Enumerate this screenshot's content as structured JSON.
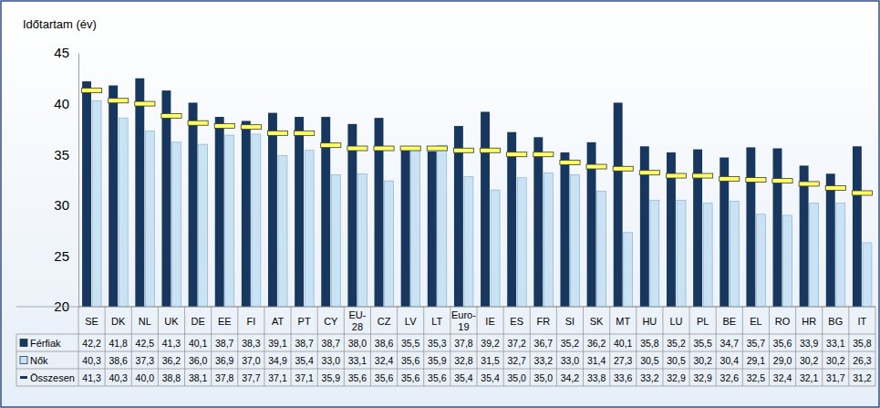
{
  "chart_data": {
    "type": "bar",
    "ylabel": "Időtartam (év)",
    "categories": [
      "SE",
      "DK",
      "NL",
      "UK",
      "DE",
      "EE",
      "FI",
      "AT",
      "PT",
      "CY",
      "EU-28",
      "CZ",
      "LV",
      "LT",
      "Euro-19",
      "IE",
      "ES",
      "FR",
      "SI",
      "SK",
      "MT",
      "HU",
      "LU",
      "PL",
      "BE",
      "EL",
      "RO",
      "HR",
      "BG",
      "IT"
    ],
    "series": [
      {
        "name": "Férfiak",
        "type": "bar",
        "color": "#17375e",
        "values": [
          42.2,
          41.8,
          42.5,
          41.3,
          40.1,
          38.7,
          38.3,
          39.1,
          38.7,
          38.7,
          38.0,
          38.6,
          35.5,
          35.3,
          37.8,
          39.2,
          37.2,
          36.7,
          35.2,
          36.2,
          40.1,
          35.8,
          35.2,
          35.5,
          34.7,
          35.7,
          35.6,
          33.9,
          33.1,
          35.8
        ],
        "value_labels": [
          "42,2",
          "41,8",
          "42,5",
          "41,3",
          "40,1",
          "38,7",
          "38,3",
          "39,1",
          "38,7",
          "38,7",
          "38,0",
          "38,6",
          "35,5",
          "35,3",
          "37,8",
          "39,2",
          "37,2",
          "36,7",
          "35,2",
          "36,2",
          "40,1",
          "35,8",
          "35,2",
          "35,5",
          "34,7",
          "35,7",
          "35,6",
          "33,9",
          "33,1",
          "35,8"
        ]
      },
      {
        "name": "Nők",
        "type": "bar",
        "color": "#c9e3f4",
        "values": [
          40.3,
          38.6,
          37.3,
          36.2,
          36.0,
          36.9,
          37.0,
          34.9,
          35.4,
          33.0,
          33.1,
          32.4,
          35.6,
          35.9,
          32.8,
          31.5,
          32.7,
          33.2,
          33.0,
          31.4,
          27.3,
          30.5,
          30.5,
          30.2,
          30.4,
          29.1,
          29.0,
          30.2,
          30.2,
          26.3
        ],
        "value_labels": [
          "40,3",
          "38,6",
          "37,3",
          "36,2",
          "36,0",
          "36,9",
          "37,0",
          "34,9",
          "35,4",
          "33,0",
          "33,1",
          "32,4",
          "35,6",
          "35,9",
          "32,8",
          "31,5",
          "32,7",
          "33,2",
          "33,0",
          "31,4",
          "27,3",
          "30,5",
          "30,5",
          "30,2",
          "30,4",
          "29,1",
          "29,0",
          "30,2",
          "30,2",
          "26,3"
        ]
      },
      {
        "name": "Összesen",
        "type": "scatter",
        "marker": "dash",
        "color": "#ffff66",
        "values": [
          41.3,
          40.3,
          40.0,
          38.8,
          38.1,
          37.8,
          37.7,
          37.1,
          37.1,
          35.9,
          35.6,
          35.6,
          35.6,
          35.6,
          35.4,
          35.4,
          35.0,
          35.0,
          34.2,
          33.8,
          33.6,
          33.2,
          32.9,
          32.9,
          32.6,
          32.5,
          32.4,
          32.1,
          31.7,
          31.2
        ],
        "value_labels": [
          "41,3",
          "40,3",
          "40,0",
          "38,8",
          "38,1",
          "37,8",
          "37,7",
          "37,1",
          "37,1",
          "35,9",
          "35,6",
          "35,6",
          "35,6",
          "35,6",
          "35,4",
          "35,4",
          "35,0",
          "35,0",
          "34,2",
          "33,8",
          "33,6",
          "33,2",
          "32,9",
          "32,9",
          "32,6",
          "32,5",
          "32,4",
          "32,1",
          "31,7",
          "31,2"
        ]
      }
    ],
    "ylim": [
      20,
      45
    ],
    "yticks": [
      20,
      25,
      30,
      35,
      40,
      45
    ],
    "grid": false
  }
}
